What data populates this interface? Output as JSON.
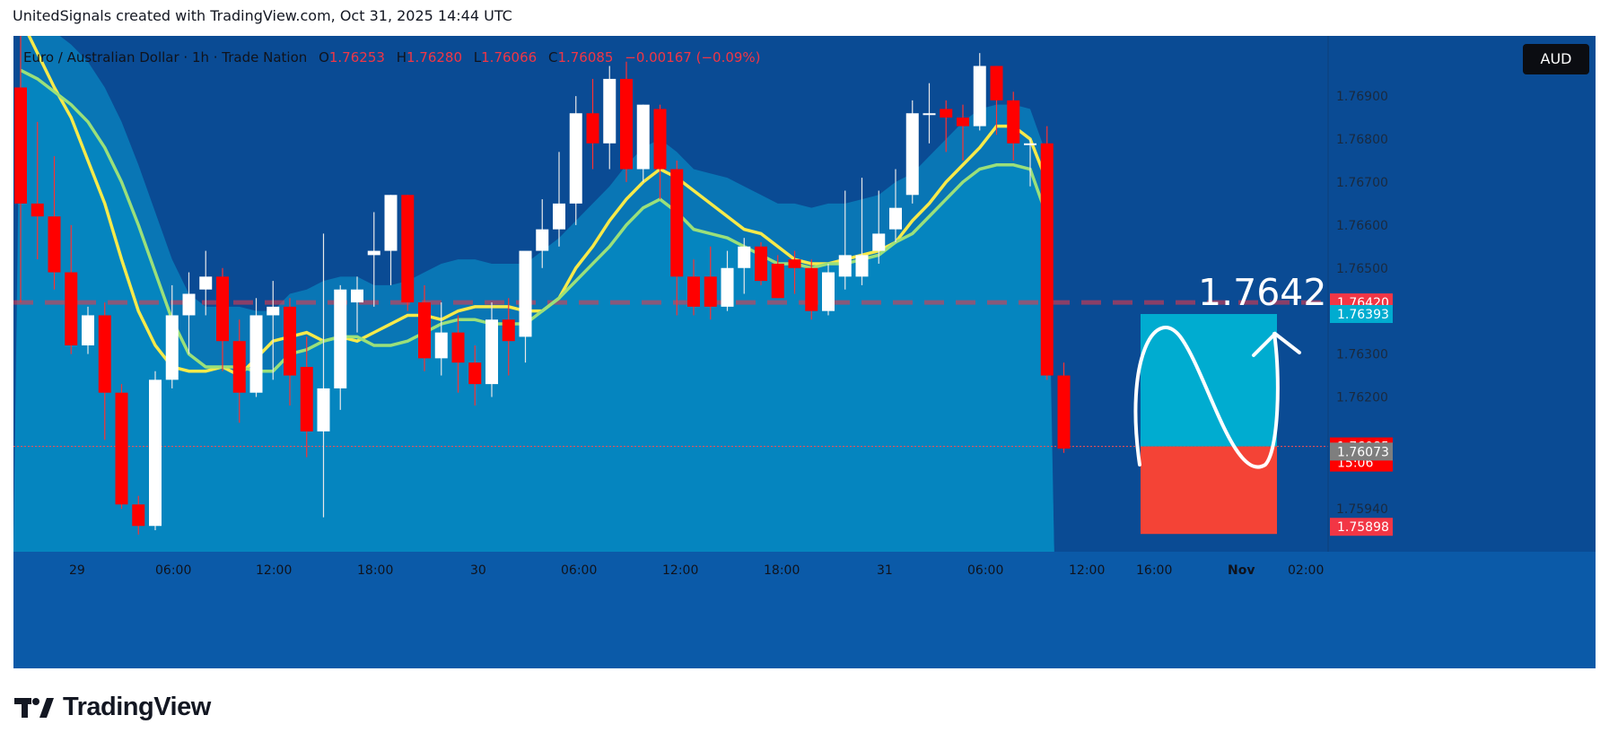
{
  "header": {
    "attribution": "UnitedSignals created with TradingView.com, Oct 31, 2025 14:44 UTC"
  },
  "legend": {
    "symbol": "Euro / Australian Dollar · 1h · Trade Nation",
    "open_label": "O",
    "open": "1.76253",
    "high_label": "H",
    "high": "1.76280",
    "low_label": "L",
    "low": "1.76066",
    "close_label": "C",
    "close": "1.76085",
    "change": "−0.00167 (−0.09%)"
  },
  "currency_button": "AUD",
  "footer": {
    "brand": "TradingView",
    "logo_icon": "tradingview-logo-icon"
  },
  "colors": {
    "background": "#0a4b94",
    "band_fill": "#0585bf",
    "bull": "#ffffff",
    "bear": "#ff0000",
    "ma_yellow": "#f7ea4a",
    "ma_green": "#9be07a",
    "target_box": "#00acd0",
    "stop_box": "#f44336"
  },
  "chart_data": {
    "type": "candlestick",
    "timeframe": "1h",
    "x_tick_labels": [
      "29",
      "06:00",
      "12:00",
      "18:00",
      "30",
      "06:00",
      "12:00",
      "18:00",
      "31",
      "06:00",
      "12:00",
      "16:00",
      "Nov",
      "02:00"
    ],
    "y_tick_labels": [
      "1.76900",
      "1.76800",
      "1.76700",
      "1.76600",
      "1.76500",
      "1.76300",
      "1.76200",
      "1.75940"
    ],
    "ylim": [
      1.7584,
      1.7704
    ],
    "candles": [
      {
        "o": 1.7692,
        "h": 1.7705,
        "l": 1.7642,
        "c": 1.7665
      },
      {
        "o": 1.7665,
        "h": 1.7684,
        "l": 1.7652,
        "c": 1.7662
      },
      {
        "o": 1.7662,
        "h": 1.7676,
        "l": 1.7645,
        "c": 1.7649
      },
      {
        "o": 1.7649,
        "h": 1.766,
        "l": 1.763,
        "c": 1.7632
      },
      {
        "o": 1.7632,
        "h": 1.7641,
        "l": 1.763,
        "c": 1.7639
      },
      {
        "o": 1.7639,
        "h": 1.7642,
        "l": 1.761,
        "c": 1.7621
      },
      {
        "o": 1.7621,
        "h": 1.7623,
        "l": 1.7594,
        "c": 1.7595
      },
      {
        "o": 1.7595,
        "h": 1.7597,
        "l": 1.7588,
        "c": 1.759
      },
      {
        "o": 1.759,
        "h": 1.7626,
        "l": 1.7589,
        "c": 1.7624
      },
      {
        "o": 1.7624,
        "h": 1.7646,
        "l": 1.7622,
        "c": 1.7639
      },
      {
        "o": 1.7639,
        "h": 1.7649,
        "l": 1.763,
        "c": 1.7644
      },
      {
        "o": 1.7645,
        "h": 1.7654,
        "l": 1.7639,
        "c": 1.7648
      },
      {
        "o": 1.7648,
        "h": 1.765,
        "l": 1.7626,
        "c": 1.7633
      },
      {
        "o": 1.7633,
        "h": 1.7638,
        "l": 1.7614,
        "c": 1.7621
      },
      {
        "o": 1.7621,
        "h": 1.7643,
        "l": 1.762,
        "c": 1.7639
      },
      {
        "o": 1.7639,
        "h": 1.7647,
        "l": 1.7624,
        "c": 1.7641
      },
      {
        "o": 1.7641,
        "h": 1.7643,
        "l": 1.7618,
        "c": 1.7625
      },
      {
        "o": 1.7627,
        "h": 1.7634,
        "l": 1.7606,
        "c": 1.7612
      },
      {
        "o": 1.7612,
        "h": 1.7658,
        "l": 1.7592,
        "c": 1.7622
      },
      {
        "o": 1.7622,
        "h": 1.7646,
        "l": 1.7617,
        "c": 1.7645
      },
      {
        "o": 1.7642,
        "h": 1.7648,
        "l": 1.7635,
        "c": 1.7645
      },
      {
        "o": 1.7653,
        "h": 1.7663,
        "l": 1.7641,
        "c": 1.7654
      },
      {
        "o": 1.7654,
        "h": 1.7667,
        "l": 1.7646,
        "c": 1.7667
      },
      {
        "o": 1.7667,
        "h": 1.7667,
        "l": 1.764,
        "c": 1.7642
      },
      {
        "o": 1.7642,
        "h": 1.7646,
        "l": 1.7626,
        "c": 1.7629
      },
      {
        "o": 1.7629,
        "h": 1.7642,
        "l": 1.7625,
        "c": 1.7635
      },
      {
        "o": 1.7635,
        "h": 1.7639,
        "l": 1.7621,
        "c": 1.7628
      },
      {
        "o": 1.7628,
        "h": 1.7632,
        "l": 1.7618,
        "c": 1.7623
      },
      {
        "o": 1.7623,
        "h": 1.7642,
        "l": 1.762,
        "c": 1.7638
      },
      {
        "o": 1.7638,
        "h": 1.7643,
        "l": 1.7625,
        "c": 1.7633
      },
      {
        "o": 1.7634,
        "h": 1.7653,
        "l": 1.7628,
        "c": 1.7654
      },
      {
        "o": 1.7654,
        "h": 1.7666,
        "l": 1.765,
        "c": 1.7659
      },
      {
        "o": 1.7659,
        "h": 1.7677,
        "l": 1.7655,
        "c": 1.7665
      },
      {
        "o": 1.7665,
        "h": 1.769,
        "l": 1.766,
        "c": 1.7686
      },
      {
        "o": 1.7686,
        "h": 1.7694,
        "l": 1.7673,
        "c": 1.7679
      },
      {
        "o": 1.7679,
        "h": 1.7697,
        "l": 1.7673,
        "c": 1.7694
      },
      {
        "o": 1.7694,
        "h": 1.7698,
        "l": 1.767,
        "c": 1.7673
      },
      {
        "o": 1.7673,
        "h": 1.7688,
        "l": 1.767,
        "c": 1.7688
      },
      {
        "o": 1.7687,
        "h": 1.7688,
        "l": 1.7666,
        "c": 1.7673
      },
      {
        "o": 1.7673,
        "h": 1.7675,
        "l": 1.7639,
        "c": 1.7648
      },
      {
        "o": 1.7648,
        "h": 1.7652,
        "l": 1.7639,
        "c": 1.7641
      },
      {
        "o": 1.7648,
        "h": 1.7655,
        "l": 1.7638,
        "c": 1.7641
      },
      {
        "o": 1.7641,
        "h": 1.7654,
        "l": 1.764,
        "c": 1.765
      },
      {
        "o": 1.765,
        "h": 1.7657,
        "l": 1.7644,
        "c": 1.7655
      },
      {
        "o": 1.7655,
        "h": 1.7656,
        "l": 1.7646,
        "c": 1.7647
      },
      {
        "o": 1.7651,
        "h": 1.7653,
        "l": 1.7643,
        "c": 1.7643
      },
      {
        "o": 1.7652,
        "h": 1.7654,
        "l": 1.7644,
        "c": 1.765
      },
      {
        "o": 1.765,
        "h": 1.7652,
        "l": 1.7638,
        "c": 1.764
      },
      {
        "o": 1.764,
        "h": 1.7651,
        "l": 1.7639,
        "c": 1.7649
      },
      {
        "o": 1.7648,
        "h": 1.7668,
        "l": 1.7645,
        "c": 1.7653
      },
      {
        "o": 1.7648,
        "h": 1.7671,
        "l": 1.7646,
        "c": 1.7653
      },
      {
        "o": 1.7654,
        "h": 1.7668,
        "l": 1.7651,
        "c": 1.7658
      },
      {
        "o": 1.7659,
        "h": 1.7673,
        "l": 1.7656,
        "c": 1.7664
      },
      {
        "o": 1.7667,
        "h": 1.7689,
        "l": 1.7665,
        "c": 1.7686
      },
      {
        "o": 1.7686,
        "h": 1.7693,
        "l": 1.7679,
        "c": 1.7686
      },
      {
        "o": 1.7687,
        "h": 1.7689,
        "l": 1.7677,
        "c": 1.7685
      },
      {
        "o": 1.7685,
        "h": 1.7688,
        "l": 1.7675,
        "c": 1.7683
      },
      {
        "o": 1.7683,
        "h": 1.77,
        "l": 1.7682,
        "c": 1.7697
      },
      {
        "o": 1.7697,
        "h": 1.7697,
        "l": 1.7681,
        "c": 1.7689
      },
      {
        "o": 1.7689,
        "h": 1.7691,
        "l": 1.7675,
        "c": 1.7679
      },
      {
        "o": 1.7679,
        "h": 1.768,
        "l": 1.7669,
        "c": 1.7679
      },
      {
        "o": 1.7679,
        "h": 1.7683,
        "l": 1.7624,
        "c": 1.7625
      },
      {
        "o": 1.7625,
        "h": 1.7628,
        "l": 1.7607,
        "c": 1.7608
      }
    ],
    "series": [
      {
        "values": [
          1.7708,
          1.77,
          1.7692,
          1.7685,
          1.7675,
          1.7665,
          1.7652,
          1.764,
          1.7632,
          1.7627,
          1.7626,
          1.7626,
          1.7627,
          1.7625,
          1.7629,
          1.7633,
          1.7634,
          1.7635,
          1.7633,
          1.7634,
          1.7633,
          1.7635,
          1.7637,
          1.7639,
          1.7639,
          1.7638,
          1.764,
          1.7641,
          1.7641,
          1.7641,
          1.764,
          1.764,
          1.7643,
          1.765,
          1.7655,
          1.7661,
          1.7666,
          1.767,
          1.7673,
          1.7671,
          1.7668,
          1.7665,
          1.7662,
          1.7659,
          1.7658,
          1.7655,
          1.7652,
          1.7651,
          1.7651,
          1.7652,
          1.7653,
          1.7654,
          1.7656,
          1.7661,
          1.7665,
          1.767,
          1.7674,
          1.7678,
          1.7683,
          1.7683,
          1.768,
          1.767
        ]
      },
      {
        "values": [
          1.7696,
          1.7694,
          1.7691,
          1.7688,
          1.7684,
          1.7678,
          1.767,
          1.766,
          1.7649,
          1.7638,
          1.763,
          1.7627,
          1.7627,
          1.7627,
          1.7626,
          1.7626,
          1.763,
          1.7631,
          1.7633,
          1.7634,
          1.7634,
          1.7632,
          1.7632,
          1.7633,
          1.7635,
          1.7637,
          1.7638,
          1.7638,
          1.7637,
          1.7637,
          1.7637,
          1.764,
          1.7643,
          1.7647,
          1.7651,
          1.7655,
          1.766,
          1.7664,
          1.7666,
          1.7663,
          1.7659,
          1.7658,
          1.7657,
          1.7655,
          1.7653,
          1.7651,
          1.7651,
          1.765,
          1.7651,
          1.7651,
          1.7652,
          1.7653,
          1.7656,
          1.7658,
          1.7662,
          1.7666,
          1.767,
          1.7673,
          1.7674,
          1.7674,
          1.7673,
          1.7662
        ]
      }
    ],
    "price_levels": [
      {
        "price": 1.7642,
        "label": "1.76420",
        "bg": "#f23645"
      },
      {
        "price": 1.76393,
        "label": "1.76393",
        "bg": "#00acd0"
      },
      {
        "price": 1.76085,
        "label": "1.76085",
        "sub": "15:06",
        "bg": "#ff0000"
      },
      {
        "price": 1.76073,
        "label": "1.76073",
        "bg": "#7e7e7e"
      },
      {
        "price": 1.75898,
        "label": "1.75898",
        "bg": "#f23645"
      }
    ],
    "annotation": {
      "text": "1.7642",
      "price": 1.7642
    },
    "target_box": {
      "top": 1.76393,
      "bottom": 1.76085
    },
    "stop_box": {
      "top": 1.76085,
      "bottom": 1.75898
    }
  }
}
